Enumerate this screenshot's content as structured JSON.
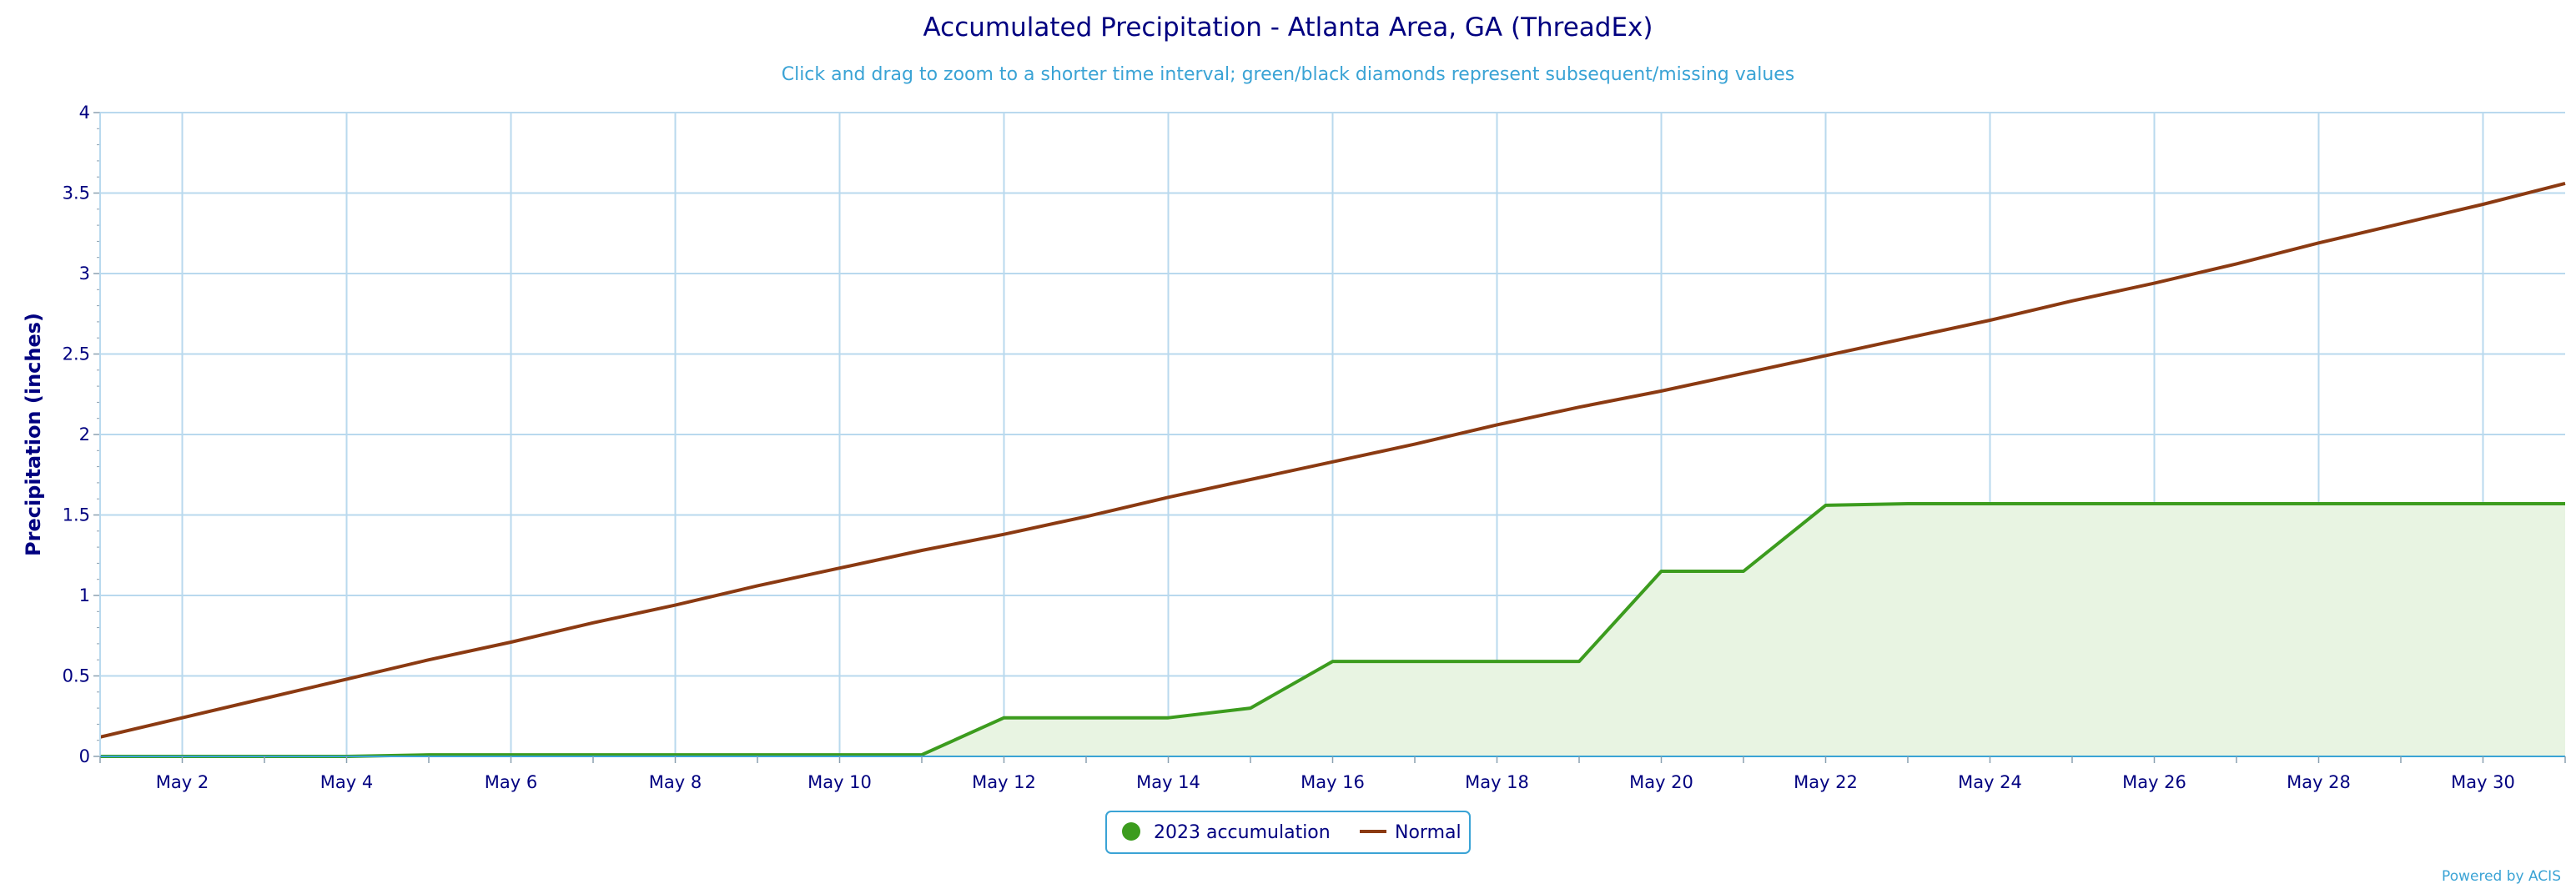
{
  "chart_data": {
    "type": "line",
    "title": "Accumulated Precipitation - Atlanta Area, GA (ThreadEx)",
    "subtitle": "Click and drag to zoom to a shorter time interval; green/black diamonds represent subsequent/missing values",
    "ylabel": "Precipitation (inches)",
    "xlabel": "",
    "ylim": [
      0,
      4
    ],
    "yticks": [
      "0",
      "0.5",
      "1",
      "1.5",
      "2",
      "2.5",
      "3",
      "3.5",
      "4"
    ],
    "xlim": [
      1,
      31
    ],
    "xticks": [
      {
        "day": 2,
        "label": "May 2"
      },
      {
        "day": 4,
        "label": "May 4"
      },
      {
        "day": 6,
        "label": "May 6"
      },
      {
        "day": 8,
        "label": "May 8"
      },
      {
        "day": 10,
        "label": "May 10"
      },
      {
        "day": 12,
        "label": "May 12"
      },
      {
        "day": 14,
        "label": "May 14"
      },
      {
        "day": 16,
        "label": "May 16"
      },
      {
        "day": 18,
        "label": "May 18"
      },
      {
        "day": 20,
        "label": "May 20"
      },
      {
        "day": 22,
        "label": "May 22"
      },
      {
        "day": 24,
        "label": "May 24"
      },
      {
        "day": 26,
        "label": "May 26"
      },
      {
        "day": 28,
        "label": "May 28"
      },
      {
        "day": 30,
        "label": "May 30"
      }
    ],
    "grid": true,
    "legend_position": "bottom-center",
    "series": [
      {
        "name": "2023 accumulation",
        "style": "area",
        "color": "#3c9c1e",
        "fill": "#e8f4e2",
        "x": [
          1,
          2,
          3,
          4,
          5,
          6,
          7,
          8,
          9,
          10,
          11,
          12,
          13,
          14,
          15,
          16,
          17,
          18,
          19,
          20,
          21,
          22,
          23,
          24,
          25,
          26,
          27,
          28,
          29,
          30,
          31
        ],
        "values": [
          0,
          0,
          0,
          0,
          0.01,
          0.01,
          0.01,
          0.01,
          0.01,
          0.01,
          0.01,
          0.24,
          0.24,
          0.24,
          0.3,
          0.59,
          0.59,
          0.59,
          0.59,
          1.15,
          1.15,
          1.56,
          1.57,
          1.57,
          1.57,
          1.57,
          1.57,
          1.57,
          1.57,
          1.57,
          1.57
        ]
      },
      {
        "name": "Normal",
        "style": "line",
        "color": "#8b3a12",
        "x": [
          1,
          2,
          3,
          4,
          5,
          6,
          7,
          8,
          9,
          10,
          11,
          12,
          13,
          14,
          15,
          16,
          17,
          18,
          19,
          20,
          21,
          22,
          23,
          24,
          25,
          26,
          27,
          28,
          29,
          30,
          31
        ],
        "values": [
          0.12,
          0.24,
          0.36,
          0.48,
          0.6,
          0.71,
          0.83,
          0.94,
          1.06,
          1.17,
          1.28,
          1.38,
          1.49,
          1.61,
          1.72,
          1.83,
          1.94,
          2.06,
          2.17,
          2.27,
          2.38,
          2.49,
          2.6,
          2.71,
          2.83,
          2.94,
          3.06,
          3.19,
          3.31,
          3.43,
          3.56
        ]
      }
    ],
    "credit": "Powered by ACIS"
  }
}
